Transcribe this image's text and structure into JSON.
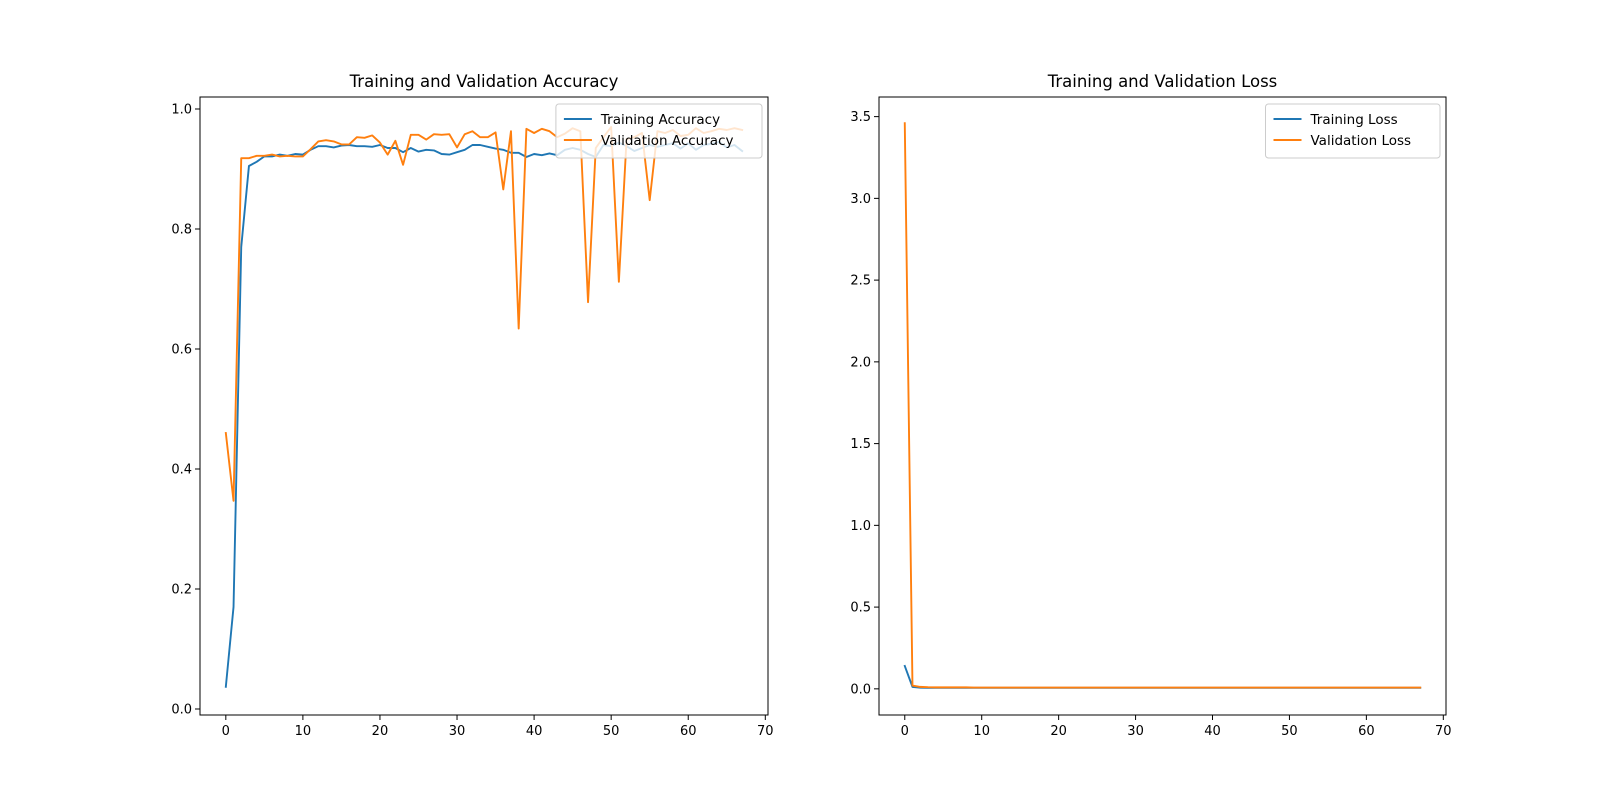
{
  "chart_data": [
    {
      "type": "line",
      "title": "Training and Validation Accuracy",
      "xlabel": "",
      "ylabel": "",
      "xlim": [
        -3.35,
        70.35
      ],
      "ylim": [
        -0.01,
        1.02
      ],
      "xticks": [
        0,
        10,
        20,
        30,
        40,
        50,
        60,
        70
      ],
      "xtick_labels": [
        "0",
        "10",
        "20",
        "30",
        "40",
        "50",
        "60",
        "70"
      ],
      "yticks": [
        0.0,
        0.2,
        0.4,
        0.6,
        0.8,
        1.0
      ],
      "ytick_labels": [
        "0.0",
        "0.2",
        "0.4",
        "0.6",
        "0.8",
        "1.0"
      ],
      "grid": false,
      "legend_position": "upper right",
      "x": [
        0,
        1,
        2,
        3,
        4,
        5,
        6,
        7,
        8,
        9,
        10,
        11,
        12,
        13,
        14,
        15,
        16,
        17,
        18,
        19,
        20,
        21,
        22,
        23,
        24,
        25,
        26,
        27,
        28,
        29,
        30,
        31,
        32,
        33,
        34,
        35,
        36,
        37,
        38,
        39,
        40,
        41,
        42,
        43,
        44,
        45,
        46,
        47,
        48,
        49,
        50,
        51,
        52,
        53,
        54,
        55,
        56,
        57,
        58,
        59,
        60,
        61,
        62,
        63,
        64,
        65,
        66,
        67
      ],
      "series": [
        {
          "name": "Training Accuracy",
          "color": "#1f77b4",
          "values": [
            0.037,
            0.17,
            0.77,
            0.905,
            0.912,
            0.921,
            0.921,
            0.924,
            0.922,
            0.925,
            0.924,
            0.932,
            0.938,
            0.938,
            0.936,
            0.939,
            0.94,
            0.938,
            0.938,
            0.937,
            0.94,
            0.935,
            0.935,
            0.928,
            0.935,
            0.929,
            0.932,
            0.931,
            0.925,
            0.924,
            0.928,
            0.932,
            0.94,
            0.94,
            0.937,
            0.934,
            0.932,
            0.927,
            0.927,
            0.92,
            0.925,
            0.923,
            0.926,
            0.923,
            0.932,
            0.935,
            0.932,
            0.925,
            0.92,
            0.94,
            0.938,
            0.944,
            0.938,
            0.93,
            0.935,
            0.94,
            0.937,
            0.94,
            0.943,
            0.934,
            0.943,
            0.932,
            0.94,
            0.942,
            0.945,
            0.936,
            0.94,
            0.93
          ]
        },
        {
          "name": "Validation Accuracy",
          "color": "#ff7f0e",
          "values": [
            0.46,
            0.347,
            0.918,
            0.918,
            0.922,
            0.922,
            0.924,
            0.921,
            0.922,
            0.921,
            0.921,
            0.933,
            0.946,
            0.948,
            0.946,
            0.941,
            0.941,
            0.953,
            0.952,
            0.956,
            0.944,
            0.924,
            0.947,
            0.907,
            0.957,
            0.957,
            0.949,
            0.958,
            0.957,
            0.958,
            0.936,
            0.958,
            0.963,
            0.953,
            0.953,
            0.961,
            0.866,
            0.963,
            0.634,
            0.967,
            0.96,
            0.967,
            0.963,
            0.953,
            0.959,
            0.968,
            0.963,
            0.678,
            0.935,
            0.953,
            0.97,
            0.712,
            0.95,
            0.953,
            0.96,
            0.848,
            0.963,
            0.96,
            0.965,
            0.955,
            0.957,
            0.968,
            0.96,
            0.963,
            0.967,
            0.965,
            0.968,
            0.965
          ]
        }
      ]
    },
    {
      "type": "line",
      "title": "Training and Validation Loss",
      "xlabel": "",
      "ylabel": "",
      "xlim": [
        -3.35,
        70.35
      ],
      "ylim": [
        -0.16,
        3.62
      ],
      "xticks": [
        0,
        10,
        20,
        30,
        40,
        50,
        60,
        70
      ],
      "xtick_labels": [
        "0",
        "10",
        "20",
        "30",
        "40",
        "50",
        "60",
        "70"
      ],
      "yticks": [
        0.0,
        0.5,
        1.0,
        1.5,
        2.0,
        2.5,
        3.0,
        3.5
      ],
      "ytick_labels": [
        "0.0",
        "0.5",
        "1.0",
        "1.5",
        "2.0",
        "2.5",
        "3.0",
        "3.5"
      ],
      "grid": false,
      "legend_position": "upper right",
      "x": [
        0,
        1,
        2,
        3,
        4,
        5,
        6,
        7,
        8,
        9,
        10,
        11,
        12,
        13,
        14,
        15,
        16,
        17,
        18,
        19,
        20,
        21,
        22,
        23,
        24,
        25,
        26,
        27,
        28,
        29,
        30,
        31,
        32,
        33,
        34,
        35,
        36,
        37,
        38,
        39,
        40,
        41,
        42,
        43,
        44,
        45,
        46,
        47,
        48,
        49,
        50,
        51,
        52,
        53,
        54,
        55,
        56,
        57,
        58,
        59,
        60,
        61,
        62,
        63,
        64,
        65,
        66,
        67
      ],
      "series": [
        {
          "name": "Training Loss",
          "color": "#1f77b4",
          "values": [
            0.14,
            0.012,
            0.007,
            0.006,
            0.006,
            0.006,
            0.006,
            0.006,
            0.006,
            0.006,
            0.006,
            0.006,
            0.006,
            0.006,
            0.006,
            0.006,
            0.006,
            0.006,
            0.006,
            0.006,
            0.006,
            0.006,
            0.006,
            0.006,
            0.006,
            0.006,
            0.006,
            0.006,
            0.006,
            0.006,
            0.006,
            0.006,
            0.006,
            0.006,
            0.006,
            0.006,
            0.006,
            0.006,
            0.006,
            0.006,
            0.006,
            0.006,
            0.006,
            0.006,
            0.006,
            0.006,
            0.006,
            0.006,
            0.006,
            0.006,
            0.006,
            0.006,
            0.006,
            0.006,
            0.006,
            0.006,
            0.006,
            0.006,
            0.006,
            0.006,
            0.006,
            0.006,
            0.006,
            0.006,
            0.006,
            0.006,
            0.006,
            0.006
          ]
        },
        {
          "name": "Validation Loss",
          "color": "#ff7f0e",
          "values": [
            3.46,
            0.02,
            0.012,
            0.01,
            0.009,
            0.009,
            0.009,
            0.009,
            0.009,
            0.008,
            0.008,
            0.008,
            0.008,
            0.008,
            0.008,
            0.008,
            0.008,
            0.008,
            0.008,
            0.008,
            0.008,
            0.008,
            0.008,
            0.008,
            0.008,
            0.008,
            0.008,
            0.008,
            0.008,
            0.008,
            0.008,
            0.008,
            0.008,
            0.008,
            0.008,
            0.008,
            0.008,
            0.008,
            0.008,
            0.008,
            0.008,
            0.008,
            0.008,
            0.008,
            0.008,
            0.008,
            0.008,
            0.008,
            0.008,
            0.008,
            0.008,
            0.008,
            0.008,
            0.008,
            0.008,
            0.008,
            0.008,
            0.008,
            0.008,
            0.008,
            0.008,
            0.008,
            0.008,
            0.008,
            0.008,
            0.008,
            0.008,
            0.008
          ]
        }
      ]
    }
  ]
}
